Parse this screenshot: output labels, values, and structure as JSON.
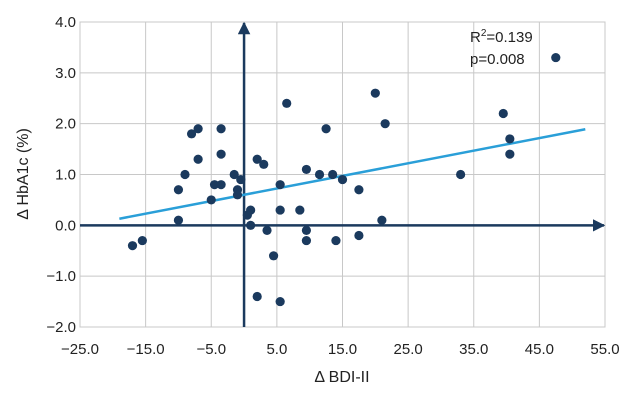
{
  "chart_data": {
    "type": "scatter",
    "title": "",
    "xlabel": "Δ BDI-II",
    "ylabel": "Δ HbA1c (%)",
    "xlim": [
      -25,
      55
    ],
    "ylim": [
      -2,
      4
    ],
    "x_ticks": [
      -25,
      -15,
      -5,
      5,
      15,
      25,
      35,
      45,
      55
    ],
    "x_tick_labels": [
      "−25.0",
      "−15.0",
      "−5.0",
      "5.0",
      "15.0",
      "25.0",
      "35.0",
      "45.0",
      "55.0"
    ],
    "y_ticks": [
      -2,
      -1,
      0,
      1,
      2,
      3,
      4
    ],
    "y_tick_labels": [
      "−2.0",
      "−1.0",
      "0.0",
      "1.0",
      "2.0",
      "3.0",
      "4.0"
    ],
    "grid": true,
    "annotation": {
      "r2_prefix": "R",
      "r2_exp": "2",
      "r2_value": "=0.139",
      "p_text": "p=0.008"
    },
    "colors": {
      "points": "#1b3a5e",
      "fit_line": "#2a9fd8",
      "axes": "#1b3a5e",
      "grid": "#c8c8c8"
    },
    "series": [
      {
        "points": [
          [
            -17.0,
            -0.4
          ],
          [
            -15.5,
            -0.3
          ],
          [
            -10.0,
            0.7
          ],
          [
            -10.0,
            0.1
          ],
          [
            -9.0,
            1.0
          ],
          [
            -8.0,
            1.8
          ],
          [
            -7.0,
            1.9
          ],
          [
            -7.0,
            1.3
          ],
          [
            -5.0,
            0.5
          ],
          [
            -4.5,
            0.8
          ],
          [
            -3.5,
            1.9
          ],
          [
            -3.5,
            1.4
          ],
          [
            -3.5,
            0.8
          ],
          [
            -1.5,
            1.0
          ],
          [
            -1.0,
            0.7
          ],
          [
            -1.0,
            0.6
          ],
          [
            -0.5,
            0.9
          ],
          [
            0.5,
            0.2
          ],
          [
            1.0,
            0.3
          ],
          [
            1.0,
            0.0
          ],
          [
            2.0,
            1.3
          ],
          [
            2.0,
            -1.4
          ],
          [
            3.0,
            1.2
          ],
          [
            3.5,
            -0.1
          ],
          [
            4.5,
            -0.6
          ],
          [
            5.5,
            0.8
          ],
          [
            5.5,
            0.3
          ],
          [
            5.5,
            -1.5
          ],
          [
            6.5,
            2.4
          ],
          [
            8.5,
            0.3
          ],
          [
            9.5,
            1.1
          ],
          [
            9.5,
            -0.1
          ],
          [
            9.5,
            -0.3
          ],
          [
            11.5,
            1.0
          ],
          [
            12.5,
            1.9
          ],
          [
            13.5,
            1.0
          ],
          [
            14.0,
            -0.3
          ],
          [
            15.0,
            0.9
          ],
          [
            17.5,
            0.7
          ],
          [
            17.5,
            -0.2
          ],
          [
            20.0,
            2.6
          ],
          [
            21.0,
            0.1
          ],
          [
            21.5,
            2.0
          ],
          [
            33.0,
            1.0
          ],
          [
            39.5,
            2.2
          ],
          [
            40.5,
            1.7
          ],
          [
            40.5,
            1.4
          ],
          [
            47.5,
            3.3
          ]
        ]
      }
    ],
    "fit_line": {
      "x1": -19.0,
      "y1": 0.13,
      "x2": 52.0,
      "y2": 1.89
    }
  }
}
